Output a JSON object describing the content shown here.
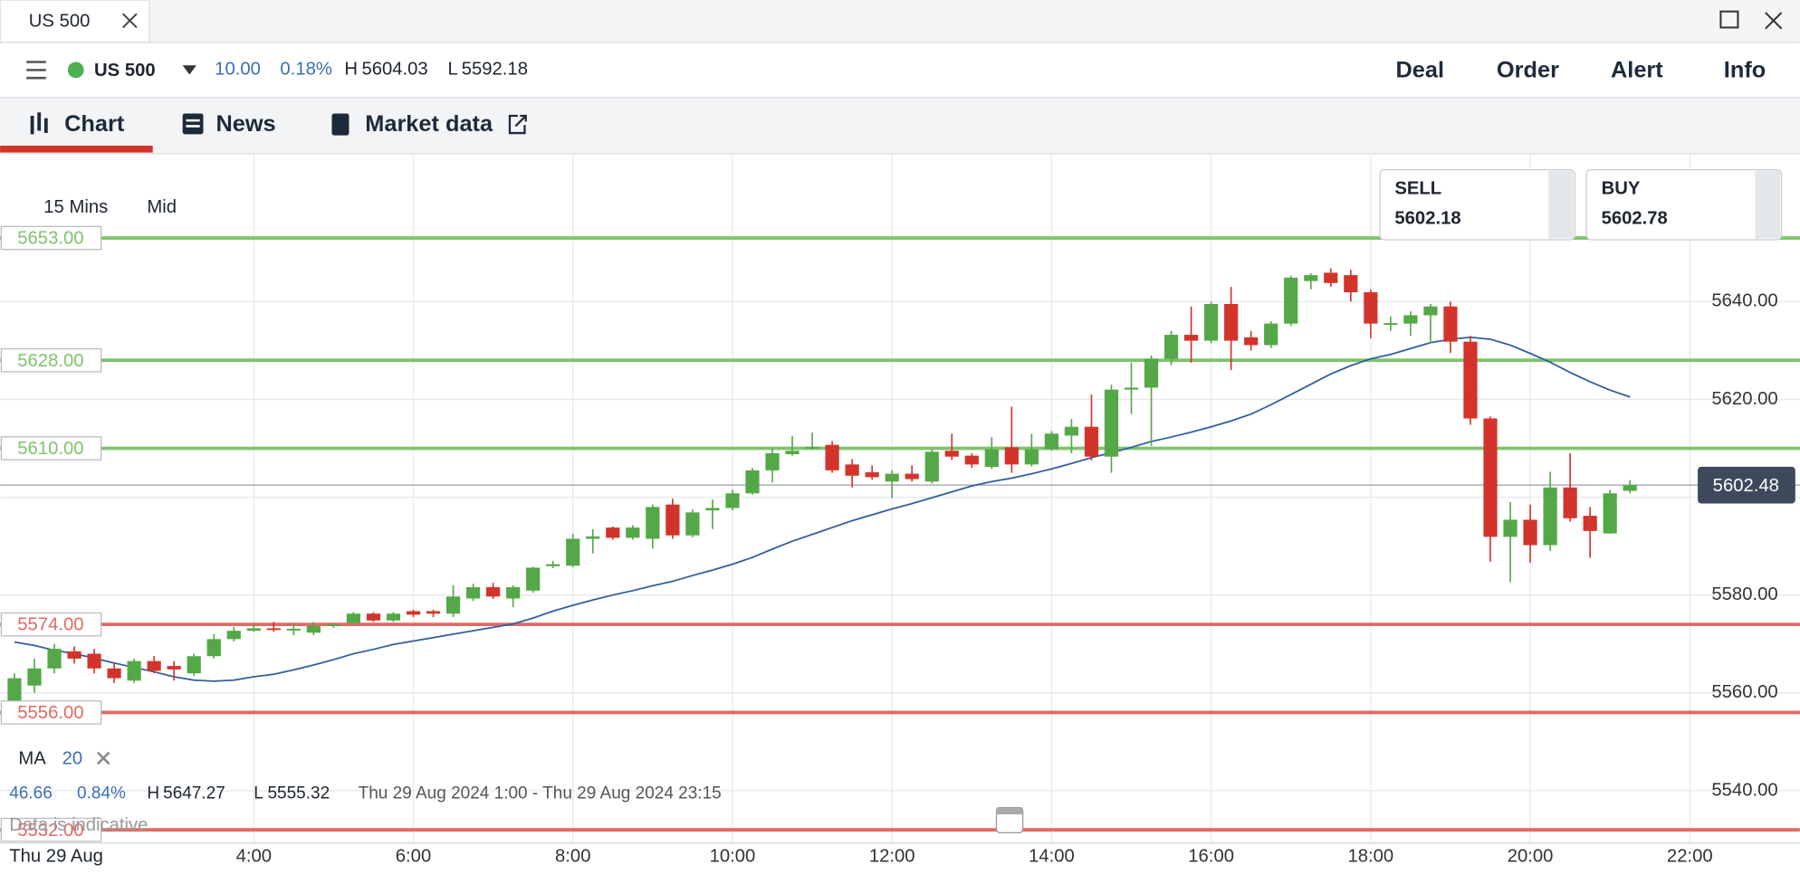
{
  "window": {
    "tab": "US 500"
  },
  "header": {
    "instrument": "US 500",
    "change": {
      "value": 10,
      "label": "10.00"
    },
    "change_pct": {
      "value": 0.18,
      "label": "0.18%"
    },
    "high_label": "H",
    "high": 5604.03,
    "low_label": "L",
    "low": 5592.18,
    "menu": [
      "Deal",
      "Order",
      "Alert",
      "Info"
    ]
  },
  "tabs": [
    "Chart",
    "News",
    "Market data"
  ],
  "chart_data": {
    "type": "candlestick",
    "interval": "15 Mins",
    "price_type": "Mid",
    "sell_title": "SELL",
    "sell": 5602.18,
    "buy_title": "BUY",
    "buy": 5602.78,
    "last_price": 5602.48,
    "up_color": "#55a847",
    "down_color": "#d2342b",
    "xlim": [
      0.82,
      23.38
    ],
    "ylim": [
      5529.3,
      5670.0
    ],
    "xticks": [
      {
        "value": 4,
        "label": "4:00"
      },
      {
        "value": 6,
        "label": "6:00"
      },
      {
        "value": 8,
        "label": "8:00"
      },
      {
        "value": 10,
        "label": "10:00"
      },
      {
        "value": 12,
        "label": "12:00"
      },
      {
        "value": 14,
        "label": "14:00"
      },
      {
        "value": 16,
        "label": "16:00"
      },
      {
        "value": 18,
        "label": "18:00"
      },
      {
        "value": 20,
        "label": "20:00"
      },
      {
        "value": 22,
        "label": "22:00"
      }
    ],
    "yticks": [
      {
        "value": 5540,
        "label": "5540.00"
      },
      {
        "value": 5560,
        "label": "5560.00"
      },
      {
        "value": 5580,
        "label": "5580.00"
      },
      {
        "value": 5600,
        "label": "5600.00"
      },
      {
        "value": 5620,
        "label": "5620.00"
      },
      {
        "value": 5640,
        "label": "5640.00"
      }
    ],
    "grid": true,
    "levels": [
      {
        "value": 5653,
        "label": "5653.00",
        "color": "#80c36e"
      },
      {
        "value": 5628,
        "label": "5628.00",
        "color": "#80c36e"
      },
      {
        "value": 5610,
        "label": "5610.00",
        "color": "#80c36e"
      },
      {
        "value": 5574,
        "label": "5574.00",
        "color": "#e06a64"
      },
      {
        "value": 5556,
        "label": "5556.00",
        "color": "#e06a64"
      },
      {
        "value": 5532,
        "label": "5532.00",
        "color": "#e06a64"
      }
    ],
    "x": [
      1,
      1.25,
      1.5,
      1.75,
      2,
      2.25,
      2.5,
      2.75,
      3,
      3.25,
      3.5,
      3.75,
      4,
      4.25,
      4.5,
      4.75,
      5,
      5.25,
      5.5,
      5.75,
      6,
      6.25,
      6.5,
      6.75,
      7,
      7.25,
      7.5,
      7.75,
      8,
      8.25,
      8.5,
      8.75,
      9,
      9.25,
      9.5,
      9.75,
      10,
      10.25,
      10.5,
      10.75,
      11,
      11.25,
      11.5,
      11.75,
      12,
      12.25,
      12.5,
      12.75,
      13,
      13.25,
      13.5,
      13.75,
      14,
      14.25,
      14.5,
      14.75,
      15,
      15.25,
      15.5,
      15.75,
      16,
      16.25,
      16.5,
      16.75,
      17,
      17.25,
      17.5,
      17.75,
      18,
      18.25,
      18.5,
      18.75,
      19,
      19.25,
      19.5,
      19.75,
      20,
      20.25,
      20.5,
      20.75,
      21,
      21.25
    ],
    "open": [
      5558,
      5561.5,
      5565,
      5568.5,
      5568,
      5565,
      5562.5,
      5566.5,
      5565.5,
      5564,
      5567.5,
      5571,
      5572.7,
      5573.2,
      5573,
      5572.3,
      5573.8,
      5574.3,
      5576.2,
      5574.8,
      5576.7,
      5576.7,
      5576.2,
      5579.3,
      5581.6,
      5579.3,
      5580.9,
      5585.9,
      5586,
      5591.5,
      5593.8,
      5591.7,
      5591.5,
      5598.5,
      5592.2,
      5597.3,
      5597.8,
      5600.8,
      5605.5,
      5608.8,
      5610.2,
      5610.7,
      5606.7,
      5605.1,
      5603.2,
      5604.8,
      5603.2,
      5609.5,
      5608.5,
      5606.2,
      5610.2,
      5606.7,
      5609.8,
      5612.6,
      5614.4,
      5608.3,
      5622,
      5622.4,
      5628.3,
      5633.2,
      5632,
      5639.5,
      5632.7,
      5631.1,
      5635.5,
      5644.2,
      5645.9,
      5645.4,
      5641.9,
      5635.5,
      5635.5,
      5637.2,
      5639,
      5631.8,
      5616.1,
      5591.9,
      5595.4,
      5590.2,
      5602,
      5596.2,
      5592.6,
      5601.3
    ],
    "high": [
      5564,
      5567,
      5570,
      5569.5,
      5569,
      5566,
      5567,
      5567.5,
      5566.5,
      5568,
      5572,
      5573.5,
      5574,
      5574.5,
      5574.3,
      5574.5,
      5574.3,
      5576.5,
      5576.5,
      5576.5,
      5577,
      5577,
      5582,
      5582.3,
      5582.5,
      5582,
      5585.8,
      5587,
      5592.5,
      5593.5,
      5594,
      5594.3,
      5598.5,
      5599.7,
      5597.5,
      5599.5,
      5601.5,
      5606,
      5610,
      5612.5,
      5613.2,
      5611.5,
      5607.8,
      5606.5,
      5605.5,
      5606.5,
      5609.8,
      5613,
      5609,
      5612.3,
      5618.5,
      5613,
      5613.5,
      5616,
      5621,
      5623,
      5627.5,
      5629,
      5634,
      5639,
      5640,
      5643,
      5634,
      5636,
      5645.3,
      5645.8,
      5646.8,
      5646.5,
      5642.5,
      5637,
      5638,
      5639.5,
      5640,
      5633,
      5616.5,
      5599,
      5598.5,
      5605.2,
      5609,
      5598,
      5601.5,
      5603.5
    ],
    "low": [
      5556,
      5560,
      5564,
      5566,
      5564,
      5562,
      5562,
      5564,
      5562.5,
      5563.5,
      5567,
      5570.5,
      5572.5,
      5572.5,
      5571.8,
      5571.8,
      5573.3,
      5574,
      5574.5,
      5574.5,
      5575.5,
      5575.5,
      5575.5,
      5578.8,
      5579.2,
      5577.5,
      5580.5,
      5585.5,
      5585.7,
      5588.5,
      5591.3,
      5591.3,
      5589.5,
      5591.5,
      5591.8,
      5593.5,
      5597.3,
      5600.5,
      5603,
      5608.5,
      5609.8,
      5605,
      5602,
      5603.6,
      5599.8,
      5603.2,
      5602.8,
      5607.6,
      5606,
      5605.8,
      5605,
      5606.3,
      5609.5,
      5609,
      5607.5,
      5605,
      5617,
      5610.5,
      5627,
      5627.5,
      5631.5,
      5626,
      5630,
      5630.5,
      5635,
      5642.5,
      5643,
      5640,
      5632.5,
      5634,
      5633,
      5631.5,
      5629.5,
      5614.8,
      5586.8,
      5582.6,
      5586.6,
      5589,
      5595,
      5587.6,
      5592.5,
      5600.8
    ],
    "close": [
      5563,
      5565,
      5569,
      5567,
      5565,
      5563,
      5566.5,
      5564.5,
      5564.8,
      5567.5,
      5571,
      5572.7,
      5573.2,
      5573,
      5573.1,
      5573.7,
      5574,
      5576.2,
      5574.8,
      5576.2,
      5576,
      5576.2,
      5579.7,
      5581.6,
      5579.7,
      5581.6,
      5585.6,
      5586.3,
      5591.5,
      5592,
      5591.7,
      5593.8,
      5598,
      5592.2,
      5596.9,
      5597.8,
      5600.8,
      5605.5,
      5609,
      5609.5,
      5610.3,
      5605.5,
      5604.4,
      5604.1,
      5604.8,
      5603.7,
      5609.3,
      5608.3,
      5606.7,
      5609.8,
      5606.7,
      5609.8,
      5613,
      5614.4,
      5608.3,
      5622,
      5622.4,
      5628.3,
      5633.2,
      5632,
      5639.5,
      5632,
      5631.1,
      5635.5,
      5644.9,
      5645.4,
      5643.8,
      5641.9,
      5635.5,
      5635.6,
      5637.2,
      5639,
      5631.8,
      5616.1,
      5591.9,
      5595.4,
      5590.2,
      5602,
      5595.7,
      5593.1,
      5600.8,
      5602.5
    ],
    "ma": {
      "name": "MA",
      "period": 20,
      "color": "#2f5f9e",
      "values": [
        5570.4,
        5569.7,
        5568.7,
        5568,
        5567.1,
        5566.1,
        5565.2,
        5564.3,
        5563.3,
        5562.6,
        5562.4,
        5562.6,
        5563.3,
        5563.8,
        5564.7,
        5565.7,
        5566.8,
        5568,
        5568.9,
        5569.9,
        5570.6,
        5571.3,
        5572,
        5572.7,
        5573.4,
        5574.1,
        5575.3,
        5576.7,
        5577.9,
        5579,
        5580,
        5580.9,
        5581.9,
        5582.8,
        5584,
        5585.1,
        5586.3,
        5587.7,
        5589.4,
        5591,
        5592.4,
        5593.8,
        5595.2,
        5596.4,
        5597.6,
        5598.7,
        5599.9,
        5601.1,
        5602.3,
        5603.2,
        5603.9,
        5604.8,
        5605.8,
        5606.9,
        5608.1,
        5609.1,
        5610.2,
        5611.4,
        5612.3,
        5613.3,
        5614.4,
        5615.6,
        5617,
        5618.9,
        5621,
        5623.1,
        5625.2,
        5626.9,
        5628.3,
        5629.2,
        5630.4,
        5631.6,
        5632.3,
        5632.7,
        5632.3,
        5631.1,
        5629.4,
        5627.6,
        5625.5,
        5623.6,
        5621.9,
        5620.5
      ]
    },
    "summary": {
      "change": 46.66,
      "change_pct": {
        "value": 0.84,
        "label": "0.84%"
      },
      "high_label": "H",
      "high": 5647.27,
      "low_label": "L",
      "low": 5555.32,
      "range": "Thu 29 Aug 2024 1:00 - Thu 29 Aug 2024 23:15"
    },
    "note": "Data is indicative",
    "date_label": "Thu 29 Aug"
  }
}
